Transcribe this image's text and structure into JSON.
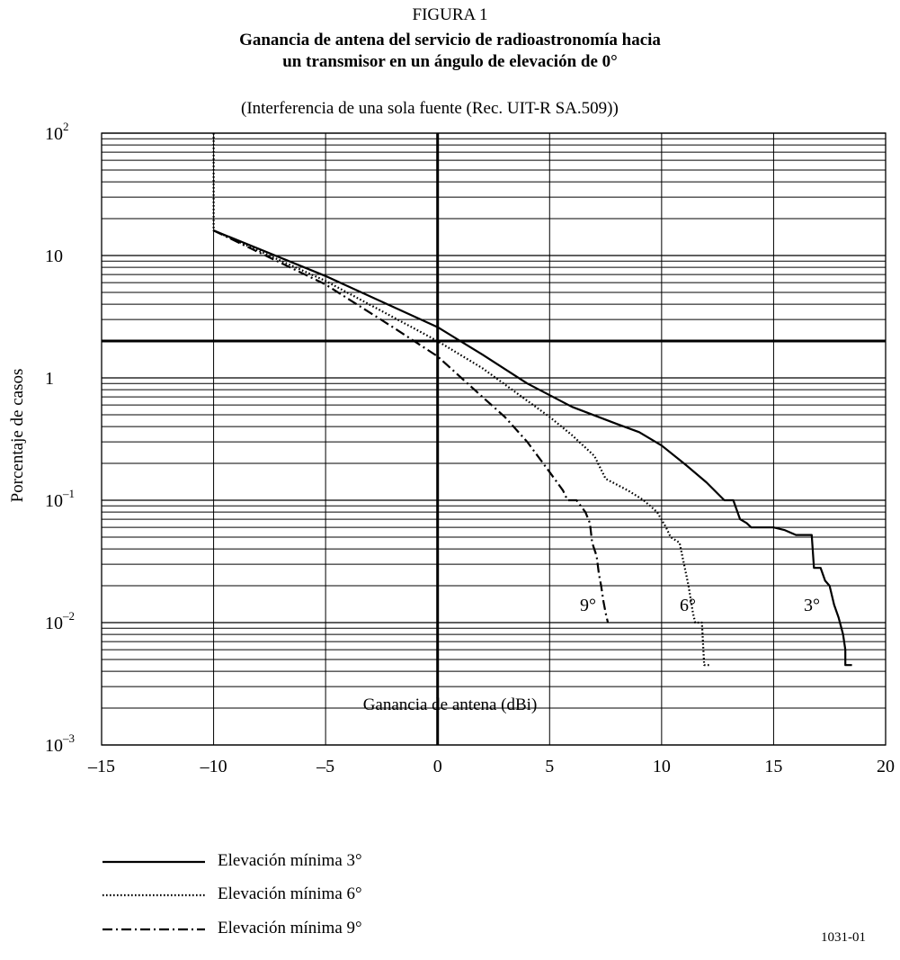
{
  "figure": {
    "label": "FIGURA 1",
    "title_line1": "Ganancia de antena del servicio de radioastronomía hacia",
    "title_line2": "un transmisor en un ángulo de elevación de 0°",
    "subtitle": "(Interferencia de una sola fuente (Rec. UIT-R SA.509))",
    "code": "1031-01"
  },
  "chart_data": {
    "type": "line",
    "xlabel": "Ganancia de antena (dBi)",
    "ylabel": "Porcentaje de casos",
    "xlim": [
      -15,
      20
    ],
    "ylim": [
      0.001,
      100
    ],
    "y_scale": "log",
    "grid": true,
    "x_ticks": [
      {
        "value": -15,
        "label": "–15"
      },
      {
        "value": -10,
        "label": "–10"
      },
      {
        "value": -5,
        "label": "–5"
      },
      {
        "value": 0,
        "label": "0"
      },
      {
        "value": 5,
        "label": "5"
      },
      {
        "value": 10,
        "label": "10"
      },
      {
        "value": 15,
        "label": "15"
      },
      {
        "value": 20,
        "label": "20"
      }
    ],
    "y_ticks": [
      {
        "value": 100,
        "base": "10",
        "exp": "2"
      },
      {
        "value": 10,
        "base": "10",
        "exp": ""
      },
      {
        "value": 1,
        "base": "1",
        "exp": ""
      },
      {
        "value": 0.1,
        "base": "10",
        "exp": "–1"
      },
      {
        "value": 0.01,
        "base": "10",
        "exp": "–2"
      },
      {
        "value": 0.001,
        "base": "10",
        "exp": "–3"
      }
    ],
    "reference_lines": {
      "x": 0,
      "y": 2
    },
    "legend_position": "bottom",
    "series": [
      {
        "name": "Elevación mínima 3°",
        "curve_label": "3°",
        "style": "solid",
        "points": [
          [
            -10,
            16
          ],
          [
            -5,
            6.8
          ],
          [
            0,
            2.6
          ],
          [
            2,
            1.55
          ],
          [
            4,
            0.9
          ],
          [
            6,
            0.58
          ],
          [
            8,
            0.42
          ],
          [
            9,
            0.36
          ],
          [
            10,
            0.28
          ],
          [
            11,
            0.2
          ],
          [
            12,
            0.14
          ],
          [
            12.8,
            0.1
          ],
          [
            13.2,
            0.1
          ],
          [
            13.5,
            0.07
          ],
          [
            13.8,
            0.065
          ],
          [
            14,
            0.06
          ],
          [
            15,
            0.06
          ],
          [
            15.5,
            0.057
          ],
          [
            16,
            0.052
          ],
          [
            16.7,
            0.052
          ],
          [
            16.8,
            0.028
          ],
          [
            17.1,
            0.028
          ],
          [
            17.3,
            0.022
          ],
          [
            17.5,
            0.02
          ],
          [
            17.7,
            0.014
          ],
          [
            17.9,
            0.011
          ],
          [
            18.1,
            0.008
          ],
          [
            18.2,
            0.006
          ],
          [
            18.2,
            0.0045
          ],
          [
            18.5,
            0.0045
          ]
        ]
      },
      {
        "name": "Elevación mínima 6°",
        "curve_label": "6°",
        "style": "dotted",
        "points": [
          [
            -10,
            100
          ],
          [
            -10,
            16
          ],
          [
            -5,
            6.2
          ],
          [
            0,
            2.0
          ],
          [
            2,
            1.2
          ],
          [
            4,
            0.65
          ],
          [
            5,
            0.48
          ],
          [
            6,
            0.34
          ],
          [
            7,
            0.23
          ],
          [
            7.5,
            0.15
          ],
          [
            8.5,
            0.12
          ],
          [
            9.2,
            0.1
          ],
          [
            9.8,
            0.08
          ],
          [
            10.2,
            0.06
          ],
          [
            10.4,
            0.05
          ],
          [
            10.8,
            0.045
          ],
          [
            11,
            0.03
          ],
          [
            11.2,
            0.02
          ],
          [
            11.4,
            0.012
          ],
          [
            11.5,
            0.01
          ],
          [
            11.8,
            0.01
          ],
          [
            11.9,
            0.0045
          ],
          [
            12.2,
            0.0045
          ]
        ]
      },
      {
        "name": "Elevación mínima 9°",
        "curve_label": "9°",
        "style": "dashdot",
        "points": [
          [
            -10,
            16
          ],
          [
            -5,
            5.8
          ],
          [
            -2,
            2.6
          ],
          [
            0,
            1.5
          ],
          [
            2,
            0.7
          ],
          [
            3,
            0.48
          ],
          [
            4,
            0.3
          ],
          [
            5,
            0.17
          ],
          [
            5.6,
            0.12
          ],
          [
            5.8,
            0.1
          ],
          [
            6.2,
            0.1
          ],
          [
            6.6,
            0.08
          ],
          [
            6.8,
            0.065
          ],
          [
            6.9,
            0.045
          ],
          [
            7.1,
            0.035
          ],
          [
            7.2,
            0.025
          ],
          [
            7.3,
            0.02
          ],
          [
            7.4,
            0.015
          ],
          [
            7.5,
            0.012
          ],
          [
            7.6,
            0.01
          ]
        ]
      }
    ]
  }
}
